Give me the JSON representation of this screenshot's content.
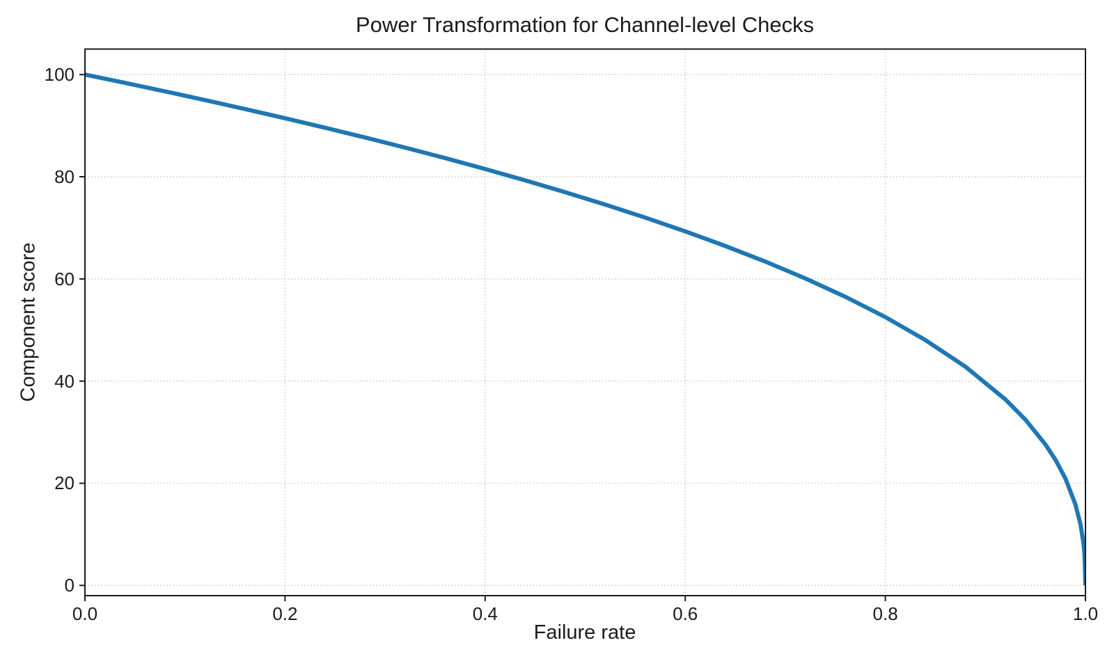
{
  "figure": {
    "background": "#ffffff",
    "text_color": "#1b1b1b"
  },
  "chart_data": {
    "type": "line",
    "title": "Power Transformation for Channel-level Checks",
    "xlabel": "Failure rate",
    "ylabel": "Component score",
    "xlim": [
      0.0,
      1.0
    ],
    "ylim": [
      -2,
      105
    ],
    "grid": true,
    "grid_style": "dotted",
    "legend": "none",
    "line_color": "#1f77b4",
    "line_width": 6,
    "xticks": [
      "0.0",
      "0.2",
      "0.4",
      "0.6",
      "0.8",
      "1.0"
    ],
    "xtick_values": [
      0,
      0.2,
      0.4,
      0.6,
      0.8,
      1.0
    ],
    "yticks": [
      "0",
      "20",
      "40",
      "60",
      "80",
      "100"
    ],
    "ytick_values": [
      0,
      20,
      40,
      60,
      80,
      100
    ],
    "series": [
      {
        "name": "Component score",
        "formula": "score = 100 * (1 - failure_rate)^0.4",
        "x": [
          0,
          0.04,
          0.08,
          0.12,
          0.16,
          0.2,
          0.24,
          0.28,
          0.32,
          0.36,
          0.4,
          0.44,
          0.48,
          0.52,
          0.56,
          0.6,
          0.64,
          0.68,
          0.72,
          0.76,
          0.8,
          0.84,
          0.88,
          0.92,
          0.94,
          0.96,
          0.97,
          0.98,
          0.99,
          0.995,
          0.998,
          0.999,
          1.0
        ],
        "y": [
          100,
          98.38,
          96.72,
          95.02,
          93.26,
          91.46,
          89.6,
          87.69,
          85.71,
          83.65,
          81.52,
          79.3,
          76.98,
          74.56,
          72.01,
          69.31,
          66.45,
          63.4,
          60.1,
          56.51,
          52.53,
          48.04,
          42.82,
          36.41,
          32.45,
          27.59,
          24.6,
          20.91,
          15.85,
          12.01,
          8.33,
          6.31,
          0
        ]
      }
    ]
  }
}
